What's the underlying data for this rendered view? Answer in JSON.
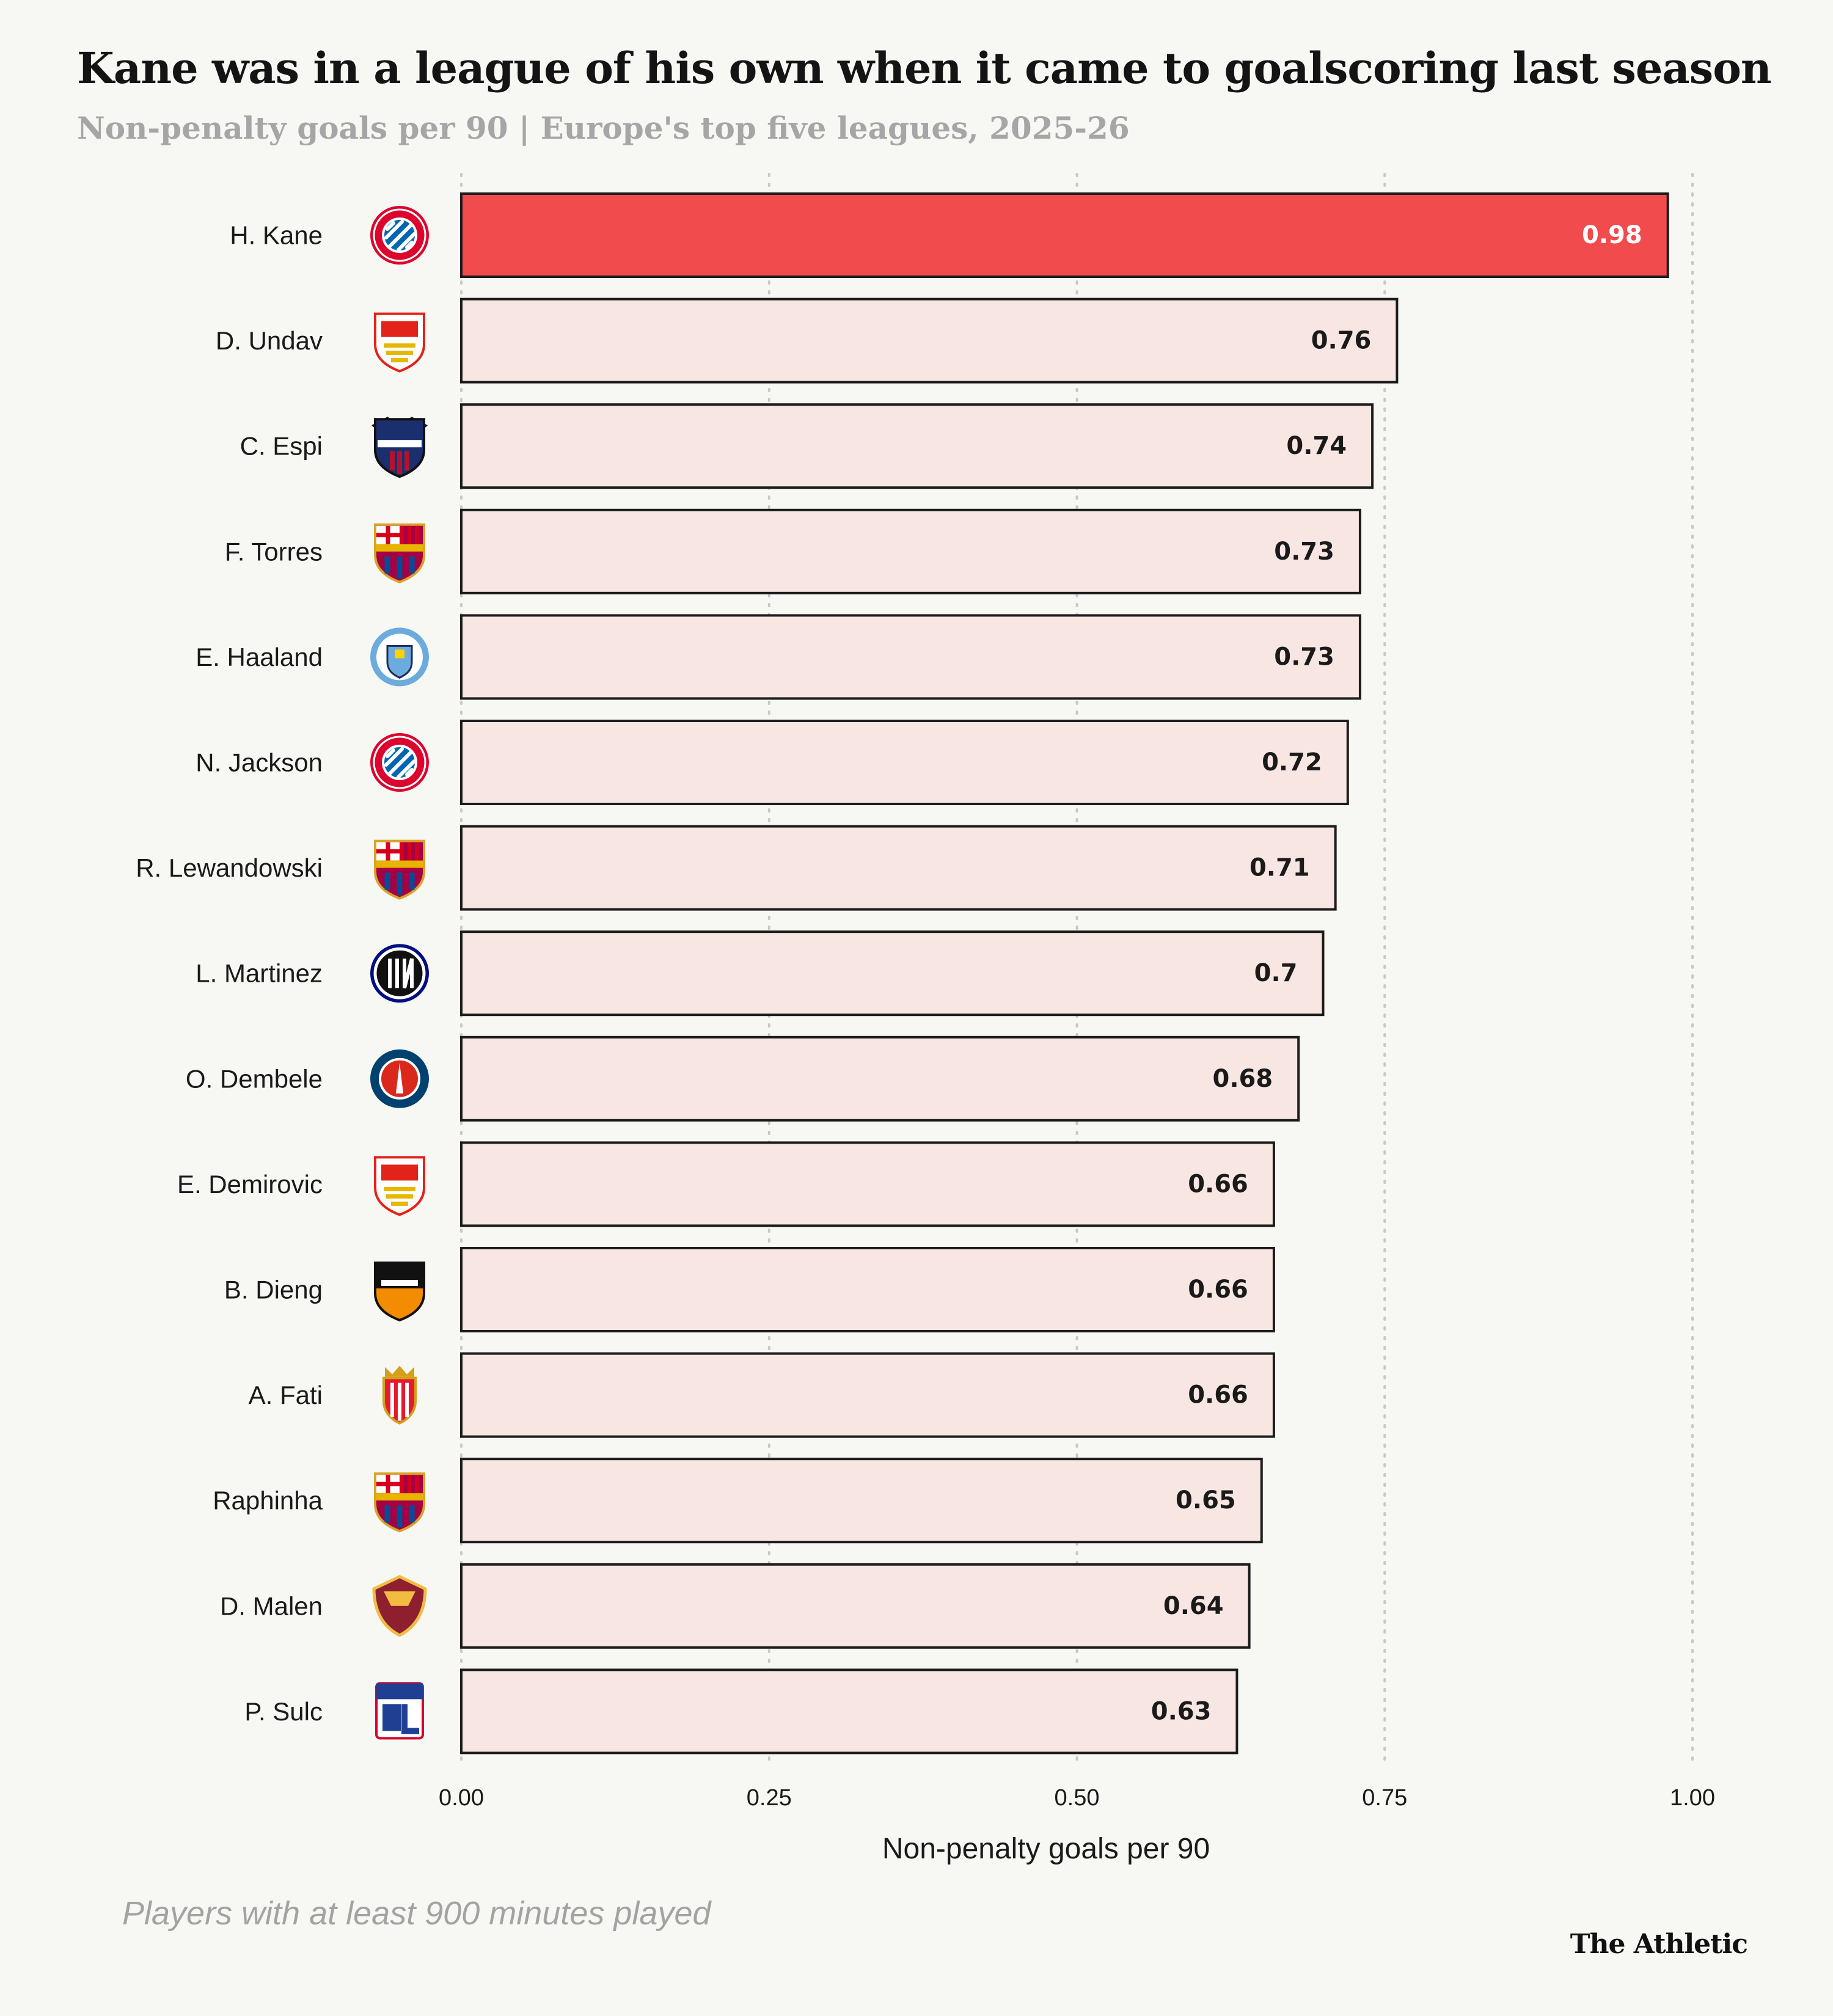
{
  "title": "Kane was in a league of his own when it came to goalscoring last season",
  "subtitle": "Non-penalty goals per 90 | Europe's top five leagues, 2025-26",
  "note": "Players with at least 900 minutes played",
  "brand": "The Athletic",
  "colors": {
    "highlight": "#f24b4d",
    "bar": "#f8e6e3",
    "bar_stroke": "#1c1c1c",
    "grid": "#c8c8c8",
    "highlight_label": "#ffffff",
    "label": "#1a1a1a"
  },
  "chart_data": {
    "type": "bar",
    "orientation": "horizontal",
    "categories": [
      "H. Kane",
      "D. Undav",
      "C. Espi",
      "F. Torres",
      "E. Haaland",
      "N. Jackson",
      "R. Lewandowski",
      "L. Martinez",
      "O. Dembele",
      "E. Demirovic",
      "B. Dieng",
      "A. Fati",
      "Raphinha",
      "D. Malen",
      "P. Sulc"
    ],
    "values": [
      0.98,
      0.76,
      0.74,
      0.73,
      0.73,
      0.72,
      0.71,
      0.7,
      0.68,
      0.66,
      0.66,
      0.66,
      0.65,
      0.64,
      0.63
    ],
    "value_labels": [
      "0.98",
      "0.76",
      "0.74",
      "0.73",
      "0.73",
      "0.72",
      "0.71",
      "0.7",
      "0.68",
      "0.66",
      "0.66",
      "0.66",
      "0.65",
      "0.64",
      "0.63"
    ],
    "club_icons": [
      "bayern-munich-crest-icon",
      "vfb-stuttgart-crest-icon",
      "levante-crest-icon",
      "fc-barcelona-crest-icon",
      "manchester-city-crest-icon",
      "bayern-munich-crest-icon",
      "fc-barcelona-crest-icon",
      "inter-milan-crest-icon",
      "psg-crest-icon",
      "vfb-stuttgart-crest-icon",
      "fc-lorient-crest-icon",
      "as-monaco-crest-icon",
      "fc-barcelona-crest-icon",
      "as-roma-crest-icon",
      "olympique-lyonnais-crest-icon"
    ],
    "highlight_index": 0,
    "xlabel": "Non-penalty goals per 90",
    "ylabel": "",
    "xlim": [
      0,
      1
    ],
    "x_ticks": [
      0,
      0.25,
      0.5,
      0.75,
      1
    ],
    "x_tick_labels": [
      "0.00",
      "0.25",
      "0.50",
      "0.75",
      "1.00"
    ],
    "grid": "vertical dotted"
  }
}
